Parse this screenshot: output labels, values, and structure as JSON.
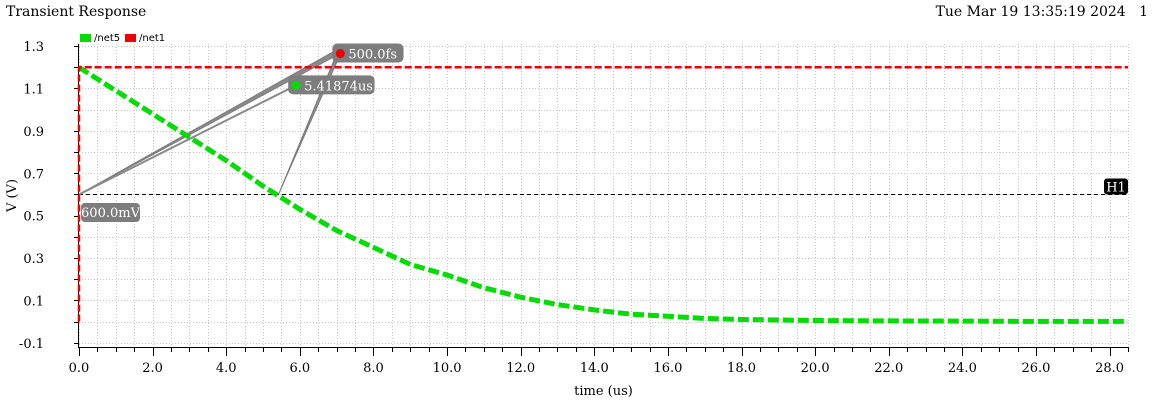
{
  "header": {
    "title": "Transient Response",
    "timestamp": "Tue Mar 19 13:35:19 2024",
    "page_number": "1"
  },
  "chart_data": {
    "type": "line",
    "title": "Transient Response",
    "xlabel": "time (us)",
    "ylabel": "V (V)",
    "xlim": [
      0,
      28.5
    ],
    "ylim": [
      -0.12,
      1.31
    ],
    "x_ticks": [
      0,
      2,
      4,
      6,
      8,
      10,
      12,
      14,
      16,
      18,
      20,
      22,
      24,
      26,
      28
    ],
    "x_tick_labels": [
      "0.0",
      "2.0",
      "4.0",
      "6.0",
      "8.0",
      "10.0",
      "12.0",
      "14.0",
      "16.0",
      "18.0",
      "20.0",
      "22.0",
      "24.0",
      "26.0",
      "28.0"
    ],
    "y_ticks": [
      -0.1,
      0.1,
      0.3,
      0.5,
      0.7,
      0.9,
      1.1,
      1.3
    ],
    "y_tick_labels": [
      "-0.1",
      "0.1",
      "0.3",
      "0.5",
      "0.7",
      "0.9",
      "1.1",
      "1.3"
    ],
    "grid": true,
    "legend_position": "top-left",
    "series": [
      {
        "name": "/net5",
        "color": "#00dd00",
        "dashed": true,
        "points": [
          [
            0,
            1.2
          ],
          [
            1,
            1.09
          ],
          [
            2,
            0.98
          ],
          [
            3,
            0.87
          ],
          [
            4,
            0.76
          ],
          [
            5,
            0.64
          ],
          [
            6,
            0.53
          ],
          [
            7,
            0.43
          ],
          [
            8,
            0.35
          ],
          [
            9,
            0.27
          ],
          [
            10,
            0.22
          ],
          [
            11,
            0.16
          ],
          [
            12,
            0.115
          ],
          [
            13,
            0.08
          ],
          [
            14,
            0.055
          ],
          [
            15,
            0.035
          ],
          [
            16,
            0.025
          ],
          [
            17,
            0.015
          ],
          [
            18,
            0.01
          ],
          [
            20,
            0.005
          ],
          [
            22,
            0.003
          ],
          [
            24,
            0.002
          ],
          [
            26,
            0.001
          ],
          [
            28,
            0.001
          ],
          [
            28.5,
            0.001
          ]
        ]
      },
      {
        "name": "/net1",
        "color": "#ee0000",
        "dashed": true,
        "points": [
          [
            0,
            0.0
          ],
          [
            0,
            1.2
          ],
          [
            28.5,
            1.2
          ]
        ]
      }
    ],
    "h_marker": {
      "name": "H1",
      "y": 0.6,
      "label": "600.0mV"
    },
    "point_markers": [
      {
        "label": "500.0fs",
        "series": "/net1",
        "x": 7.1,
        "y": 1.265
      },
      {
        "label": "5.41874us",
        "series": "/net5",
        "x": 5.9,
        "y": 1.115
      }
    ],
    "leader_anchors": [
      {
        "x": 0,
        "y": 0.6
      },
      {
        "x": 5.42,
        "y": 0.6
      }
    ]
  }
}
